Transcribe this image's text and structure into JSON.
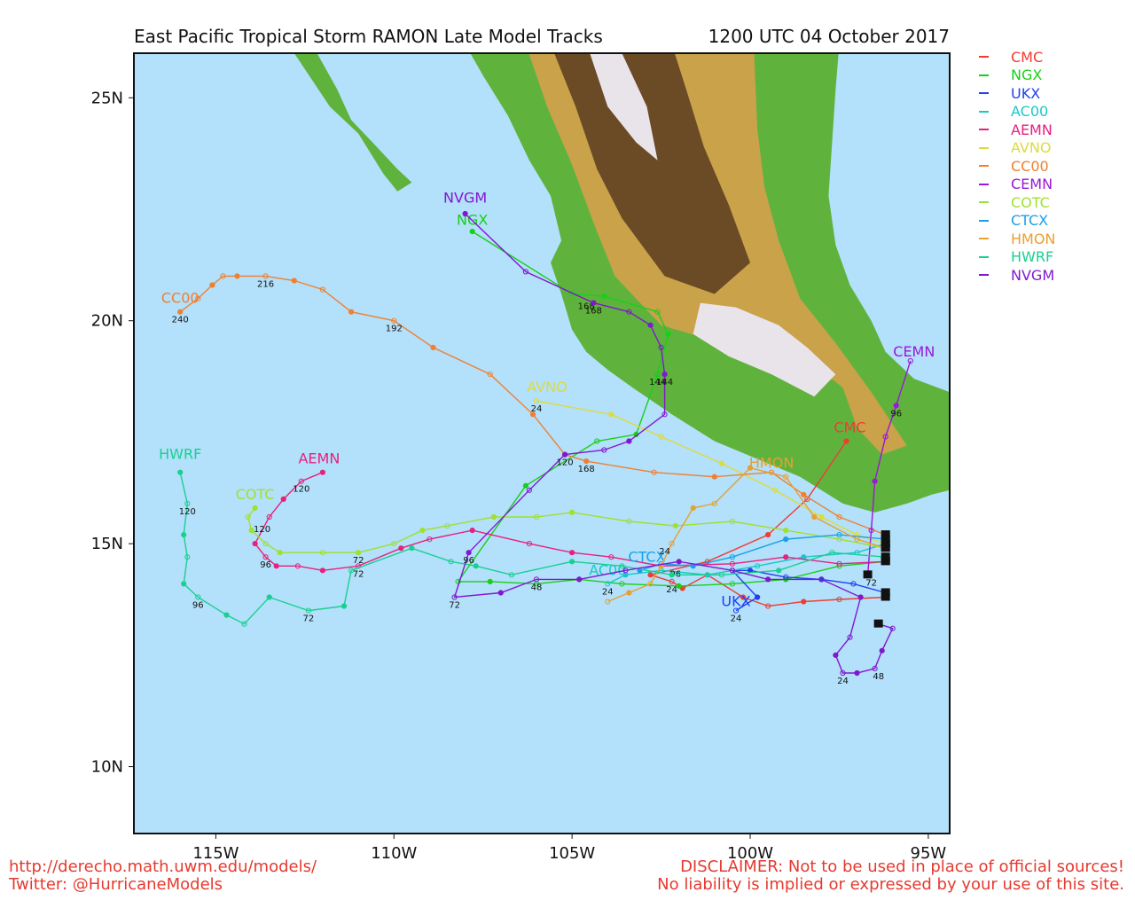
{
  "title_left": "East Pacific Tropical Storm RAMON Late Model Tracks",
  "title_right": "1200 UTC 04 October 2017",
  "footer": {
    "url": "http://derecho.math.uwm.edu/models/",
    "twitter": "Twitter: @HurricaneModels",
    "disclaimer1": "DISCLAIMER: Not to be used in place of official sources!",
    "disclaimer2": "No liability is implied or expressed by your use of this site."
  },
  "colors": {
    "ocean": "#b3e0fa",
    "land_low": "#5fb33c",
    "land_mid": "#c9a24a",
    "land_high": "#6b4a26",
    "land_peak": "#e8e4ea"
  },
  "chart_data": {
    "type": "map-tracks",
    "lon_range": [
      -117.3,
      -94.4
    ],
    "lat_range": [
      8.5,
      26.0
    ],
    "x_ticks": [
      {
        "value": -115,
        "label": "115W"
      },
      {
        "value": -110,
        "label": "110W"
      },
      {
        "value": -105,
        "label": "105W"
      },
      {
        "value": -100,
        "label": "100W"
      },
      {
        "value": -95,
        "label": "95W"
      }
    ],
    "y_ticks": [
      {
        "value": 25,
        "label": "25N"
      },
      {
        "value": 20,
        "label": "20N"
      },
      {
        "value": 15,
        "label": "15N"
      },
      {
        "value": 10,
        "label": "10N"
      }
    ],
    "series": [
      {
        "name": "CMC",
        "color": "#f03c32",
        "end_label_pos": [
          -97.2,
          17.5
        ],
        "points": [
          [
            -96.2,
            13.8
          ],
          [
            -97.5,
            13.75
          ],
          [
            -98.5,
            13.7
          ],
          [
            -99.5,
            13.6
          ],
          [
            -100.2,
            13.8
          ],
          [
            -101.2,
            14.3
          ],
          [
            -101.9,
            14.0
          ],
          [
            -102.2,
            14.15
          ],
          [
            -102.8,
            14.3
          ],
          [
            -101.2,
            14.6
          ],
          [
            -99.5,
            15.2
          ],
          [
            -98.4,
            16.0
          ],
          [
            -97.3,
            17.3
          ]
        ],
        "tau": [
          {
            "p": [
              -102.2,
              14.15
            ],
            "t": "24"
          }
        ]
      },
      {
        "name": "NGX",
        "color": "#18d018",
        "end_label_pos": [
          -107.8,
          22.15
        ],
        "points": [
          [
            -96.2,
            14.6
          ],
          [
            -97.5,
            14.5
          ],
          [
            -99.0,
            14.2
          ],
          [
            -100.5,
            14.1
          ],
          [
            -102.0,
            14.05
          ],
          [
            -103.6,
            14.1
          ],
          [
            -104.8,
            14.2
          ],
          [
            -106.0,
            14.1
          ],
          [
            -107.3,
            14.15
          ],
          [
            -108.2,
            14.15
          ],
          [
            -106.3,
            16.3
          ],
          [
            -104.3,
            17.3
          ],
          [
            -103.2,
            17.45
          ],
          [
            -102.6,
            18.8
          ],
          [
            -102.3,
            19.7
          ],
          [
            -102.6,
            20.2
          ],
          [
            -104.1,
            20.55
          ],
          [
            -105.0,
            20.6
          ],
          [
            -107.8,
            22.0
          ]
        ],
        "tau": [
          {
            "p": [
              -102.4,
              18.8
            ],
            "t": "144"
          },
          {
            "p": [
              -104.6,
              20.5
            ],
            "t": "168"
          }
        ]
      },
      {
        "name": "UKX",
        "color": "#2040f0",
        "end_label_pos": [
          -100.4,
          13.6
        ],
        "points": [
          [
            -96.2,
            13.9
          ],
          [
            -97.1,
            14.1
          ],
          [
            -98.0,
            14.2
          ],
          [
            -99.0,
            14.25
          ],
          [
            -100.0,
            14.4
          ],
          [
            -100.5,
            14.4
          ],
          [
            -99.8,
            13.8
          ],
          [
            -100.4,
            13.5
          ]
        ],
        "tau": [
          {
            "p": [
              -100.4,
              13.5
            ],
            "t": "24"
          }
        ]
      },
      {
        "name": "AC00",
        "color": "#18c8c8",
        "end_label_pos": [
          -104.0,
          14.3
        ],
        "points": [
          [
            -96.2,
            15.0
          ],
          [
            -97.0,
            14.8
          ],
          [
            -98.5,
            14.7
          ],
          [
            -99.8,
            14.5
          ],
          [
            -101.2,
            14.3
          ],
          [
            -102.5,
            14.4
          ],
          [
            -103.5,
            14.3
          ],
          [
            -104.0,
            14.1
          ]
        ],
        "tau": [
          {
            "p": [
              -104.0,
              14.1
            ],
            "t": "24"
          }
        ]
      },
      {
        "name": "AEMN",
        "color": "#e8207e",
        "end_label_pos": [
          -112.1,
          16.8
        ],
        "points": [
          [
            -96.2,
            14.6
          ],
          [
            -97.5,
            14.55
          ],
          [
            -99.0,
            14.7
          ],
          [
            -100.5,
            14.55
          ],
          [
            -102.5,
            14.5
          ],
          [
            -103.9,
            14.7
          ],
          [
            -105.0,
            14.8
          ],
          [
            -106.2,
            15.0
          ],
          [
            -107.8,
            15.3
          ],
          [
            -109.0,
            15.1
          ],
          [
            -109.8,
            14.9
          ],
          [
            -111.0,
            14.5
          ],
          [
            -112.0,
            14.4
          ],
          [
            -112.7,
            14.5
          ],
          [
            -113.3,
            14.5
          ],
          [
            -113.6,
            14.7
          ],
          [
            -113.9,
            15.0
          ],
          [
            -113.5,
            15.6
          ],
          [
            -113.1,
            16.0
          ],
          [
            -112.6,
            16.4
          ],
          [
            -112.0,
            16.6
          ]
        ],
        "tau": [
          {
            "p": [
              -111.0,
              14.5
            ],
            "t": "72"
          },
          {
            "p": [
              -113.6,
              14.7
            ],
            "t": "96"
          },
          {
            "p": [
              -112.6,
              16.4
            ],
            "t": "120"
          }
        ]
      },
      {
        "name": "AVNO",
        "color": "#dcdc3c",
        "end_label_pos": [
          -105.7,
          18.4
        ],
        "points": [
          [
            -96.2,
            15.0
          ],
          [
            -97.0,
            15.2
          ],
          [
            -98.0,
            15.6
          ],
          [
            -99.3,
            16.2
          ],
          [
            -100.8,
            16.8
          ],
          [
            -102.5,
            17.4
          ],
          [
            -103.9,
            17.9
          ],
          [
            -106.0,
            18.2
          ]
        ],
        "tau": [
          {
            "p": [
              -106.0,
              18.2
            ],
            "t": "24"
          }
        ]
      },
      {
        "name": "CC00",
        "color": "#f08030",
        "end_label_pos": [
          -116.0,
          20.4
        ],
        "points": [
          [
            -96.2,
            15.2
          ],
          [
            -97.5,
            15.6
          ],
          [
            -98.5,
            16.1
          ],
          [
            -99.4,
            16.6
          ],
          [
            -101.0,
            16.5
          ],
          [
            -102.7,
            16.6
          ],
          [
            -104.6,
            16.85
          ],
          [
            -105.2,
            17.0
          ],
          [
            -106.1,
            17.9
          ],
          [
            -107.3,
            18.8
          ],
          [
            -108.9,
            19.4
          ],
          [
            -110.0,
            20.0
          ],
          [
            -111.2,
            20.2
          ],
          [
            -112.0,
            20.7
          ],
          [
            -112.8,
            20.9
          ],
          [
            -113.6,
            21.0
          ],
          [
            -114.4,
            21.0
          ],
          [
            -114.8,
            21.0
          ],
          [
            -115.1,
            20.8
          ],
          [
            -115.5,
            20.5
          ],
          [
            -116.0,
            20.2
          ]
        ],
        "tau": [
          {
            "p": [
              -104.6,
              16.85
            ],
            "t": "168"
          },
          {
            "p": [
              -110.0,
              20.0
            ],
            "t": "192"
          },
          {
            "p": [
              -113.6,
              21.0
            ],
            "t": "216"
          },
          {
            "p": [
              -116.0,
              20.2
            ],
            "t": "240"
          }
        ]
      },
      {
        "name": "CEMN",
        "color": "#9a18d8",
        "end_label_pos": [
          -95.4,
          19.2
        ],
        "points": [
          [
            -96.7,
            14.3
          ],
          [
            -96.6,
            15.3
          ],
          [
            -96.5,
            16.4
          ],
          [
            -96.2,
            17.4
          ],
          [
            -95.9,
            18.1
          ],
          [
            -95.5,
            19.1
          ]
        ],
        "tau": [
          {
            "p": [
              -96.6,
              14.3
            ],
            "t": "72"
          },
          {
            "p": [
              -95.9,
              18.1
            ],
            "t": "96"
          }
        ]
      },
      {
        "name": "COTC",
        "color": "#a0e030",
        "end_label_pos": [
          -113.9,
          16.0
        ],
        "points": [
          [
            -96.2,
            14.9
          ],
          [
            -97.5,
            15.1
          ],
          [
            -99.0,
            15.3
          ],
          [
            -100.5,
            15.5
          ],
          [
            -102.1,
            15.4
          ],
          [
            -103.4,
            15.5
          ],
          [
            -105.0,
            15.7
          ],
          [
            -106.0,
            15.6
          ],
          [
            -107.2,
            15.6
          ],
          [
            -108.5,
            15.4
          ],
          [
            -109.2,
            15.3
          ],
          [
            -110.0,
            15.0
          ],
          [
            -111.0,
            14.8
          ],
          [
            -112.0,
            14.8
          ],
          [
            -113.2,
            14.8
          ],
          [
            -113.6,
            15.0
          ],
          [
            -114.0,
            15.3
          ],
          [
            -114.1,
            15.6
          ],
          [
            -113.9,
            15.8
          ]
        ],
        "tau": [
          {
            "p": [
              -111.0,
              14.8
            ],
            "t": "72"
          },
          {
            "p": [
              -113.7,
              15.5
            ],
            "t": "120"
          }
        ]
      },
      {
        "name": "CTCX",
        "color": "#1aa0e8",
        "end_label_pos": [
          -102.9,
          14.6
        ],
        "points": [
          [
            -96.2,
            15.1
          ],
          [
            -97.5,
            15.2
          ],
          [
            -99.0,
            15.1
          ],
          [
            -100.5,
            14.7
          ],
          [
            -101.6,
            14.5
          ],
          [
            -102.5,
            14.55
          ],
          [
            -103.1,
            14.4
          ]
        ],
        "tau": [
          {
            "p": [
              -102.1,
              14.5
            ],
            "t": "96"
          }
        ]
      },
      {
        "name": "HMON",
        "color": "#e8a030",
        "end_label_pos": [
          -99.4,
          16.7
        ],
        "points": [
          [
            -96.2,
            14.9
          ],
          [
            -97.0,
            15.1
          ],
          [
            -98.2,
            15.6
          ],
          [
            -99.0,
            16.5
          ],
          [
            -100.0,
            16.7
          ],
          [
            -101.0,
            15.9
          ],
          [
            -101.6,
            15.8
          ],
          [
            -102.2,
            15.0
          ],
          [
            -102.5,
            14.5
          ],
          [
            -102.8,
            14.1
          ],
          [
            -103.4,
            13.9
          ],
          [
            -104.0,
            13.7
          ]
        ],
        "tau": [
          {
            "p": [
              -102.4,
              15.0
            ],
            "t": "24"
          }
        ]
      },
      {
        "name": "HWRF",
        "color": "#18d090",
        "end_label_pos": [
          -116.0,
          16.9
        ],
        "points": [
          [
            -96.2,
            14.7
          ],
          [
            -97.7,
            14.8
          ],
          [
            -99.2,
            14.4
          ],
          [
            -100.8,
            14.3
          ],
          [
            -102.2,
            14.3
          ],
          [
            -103.6,
            14.5
          ],
          [
            -105.0,
            14.6
          ],
          [
            -106.7,
            14.3
          ],
          [
            -107.7,
            14.5
          ],
          [
            -108.4,
            14.6
          ],
          [
            -109.5,
            14.9
          ],
          [
            -111.2,
            14.4
          ],
          [
            -111.4,
            13.6
          ],
          [
            -112.4,
            13.5
          ],
          [
            -113.5,
            13.8
          ],
          [
            -114.2,
            13.2
          ],
          [
            -114.7,
            13.4
          ],
          [
            -115.5,
            13.8
          ],
          [
            -115.9,
            14.1
          ],
          [
            -115.8,
            14.7
          ],
          [
            -115.9,
            15.2
          ],
          [
            -115.8,
            15.9
          ],
          [
            -116.0,
            16.6
          ]
        ],
        "tau": [
          {
            "p": [
              -112.4,
              13.5
            ],
            "t": "72"
          },
          {
            "p": [
              -115.5,
              13.8
            ],
            "t": "96"
          },
          {
            "p": [
              -115.8,
              15.9
            ],
            "t": "120"
          }
        ]
      },
      {
        "name": "NVGM",
        "color": "#8018d0",
        "end_label_pos": [
          -108.0,
          22.65
        ],
        "points": [
          [
            -96.4,
            13.2
          ],
          [
            -96.0,
            13.1
          ],
          [
            -96.3,
            12.6
          ],
          [
            -96.5,
            12.2
          ],
          [
            -97.0,
            12.1
          ],
          [
            -97.4,
            12.1
          ],
          [
            -97.6,
            12.5
          ],
          [
            -97.2,
            12.9
          ],
          [
            -96.9,
            13.8
          ],
          [
            -98.0,
            14.2
          ],
          [
            -99.5,
            14.2
          ],
          [
            -100.5,
            14.4
          ],
          [
            -102.0,
            14.6
          ],
          [
            -103.5,
            14.4
          ],
          [
            -104.8,
            14.2
          ],
          [
            -106.0,
            14.2
          ],
          [
            -107.0,
            13.9
          ],
          [
            -108.3,
            13.8
          ],
          [
            -107.9,
            14.8
          ],
          [
            -106.2,
            16.2
          ],
          [
            -105.2,
            17.0
          ],
          [
            -104.1,
            17.1
          ],
          [
            -103.4,
            17.3
          ],
          [
            -102.4,
            17.9
          ],
          [
            -102.4,
            18.8
          ],
          [
            -102.5,
            19.4
          ],
          [
            -102.8,
            19.9
          ],
          [
            -103.4,
            20.2
          ],
          [
            -104.4,
            20.4
          ],
          [
            -106.3,
            21.1
          ],
          [
            -108.0,
            22.4
          ]
        ],
        "tau": [
          {
            "p": [
              -97.4,
              12.1
            ],
            "t": "24"
          },
          {
            "p": [
              -96.4,
              12.2
            ],
            "t": "48"
          },
          {
            "p": [
              -106.0,
              14.2
            ],
            "t": "48"
          },
          {
            "p": [
              -108.3,
              13.8
            ],
            "t": "72"
          },
          {
            "p": [
              -107.9,
              14.8
            ],
            "t": "96"
          },
          {
            "p": [
              -105.2,
              17.0
            ],
            "t": "120"
          },
          {
            "p": [
              -102.6,
              18.8
            ],
            "t": "144"
          },
          {
            "p": [
              -104.4,
              20.4
            ],
            "t": "168"
          }
        ]
      }
    ]
  }
}
